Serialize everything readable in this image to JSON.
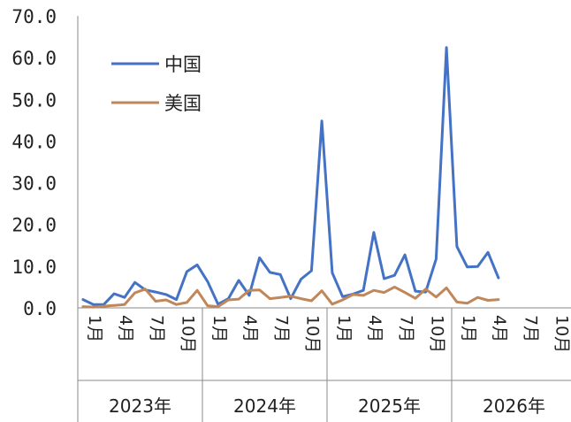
{
  "chart_data": {
    "type": "line",
    "title": "",
    "xlabel": "",
    "ylabel": "",
    "ylim": [
      0,
      70
    ],
    "yticks": [
      "0.0",
      "10.0",
      "20.0",
      "30.0",
      "40.0",
      "50.0",
      "60.0",
      "70.0"
    ],
    "grid": false,
    "legend_position": "top-left",
    "month_tick_labels": [
      "1月",
      "4月",
      "7月",
      "10月"
    ],
    "years": [
      "2023年",
      "2024年",
      "2025年",
      "2026年"
    ],
    "series": [
      {
        "name": "中国",
        "color": "#4472C4",
        "values": [
          2.0,
          0.8,
          0.8,
          3.4,
          2.5,
          6.1,
          4.3,
          3.8,
          3.2,
          2.0,
          8.7,
          10.3,
          6.3,
          0.9,
          2.2,
          6.6,
          3.0,
          12.0,
          8.5,
          8.0,
          2.2,
          6.9,
          8.9,
          44.8,
          8.4,
          2.7,
          3.3,
          4.2,
          18.1,
          7.0,
          7.8,
          12.7,
          4.0,
          3.8,
          11.7,
          62.4,
          14.7,
          9.8,
          9.9,
          13.3,
          7.2
        ]
      },
      {
        "name": "美国",
        "color": "#C0875A",
        "values": [
          0.3,
          0.2,
          0.4,
          0.6,
          0.8,
          3.6,
          4.5,
          1.6,
          1.9,
          0.8,
          1.3,
          4.2,
          0.5,
          0.3,
          1.9,
          2.1,
          4.2,
          4.3,
          2.2,
          2.5,
          2.8,
          2.2,
          1.7,
          4.1,
          0.9,
          1.9,
          3.2,
          3.0,
          4.2,
          3.7,
          5.0,
          3.7,
          2.3,
          4.5,
          2.6,
          4.8,
          1.4,
          1.1,
          2.5,
          1.8,
          2.0
        ]
      }
    ]
  }
}
